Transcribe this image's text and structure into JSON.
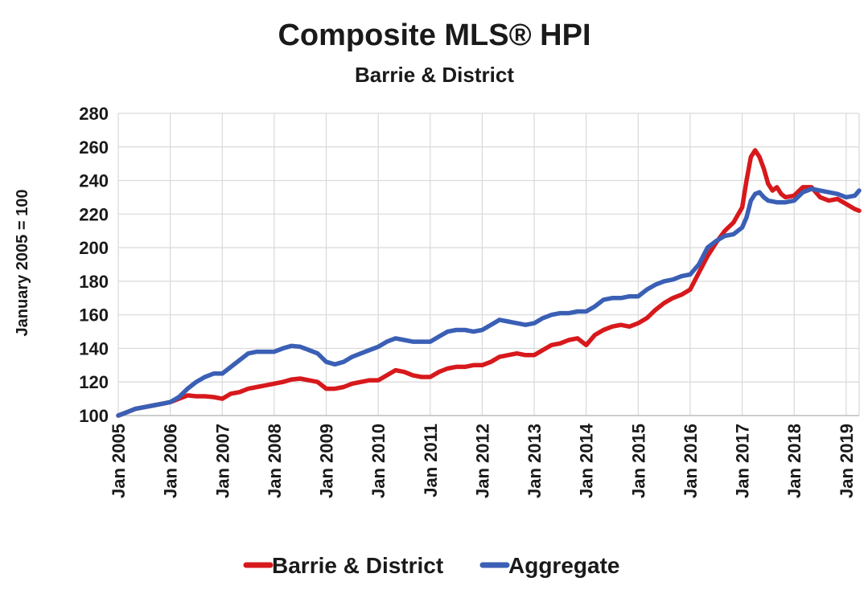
{
  "chart_data": {
    "type": "line",
    "title": "Composite MLS® HPI",
    "subtitle": "Barrie & District",
    "ylabel": "January 2005 = 100",
    "xlabel": "",
    "ylim": [
      100,
      280
    ],
    "yticks": [
      100,
      120,
      140,
      160,
      180,
      200,
      220,
      240,
      260,
      280
    ],
    "xlim": [
      "2005-01",
      "2019-04"
    ],
    "xticks": [
      "Jan 2005",
      "Jan 2006",
      "Jan 2007",
      "Jan 2008",
      "Jan 2009",
      "Jan 2010",
      "Jan 2011",
      "Jan 2012",
      "Jan 2013",
      "Jan 2014",
      "Jan 2015",
      "Jan 2016",
      "Jan 2017",
      "Jan 2018",
      "Jan 2019"
    ],
    "grid": true,
    "legend_position": "bottom",
    "series": [
      {
        "name": "Barrie & District",
        "color": "#d7191c",
        "points": [
          [
            "2005-01",
            100
          ],
          [
            "2005-03",
            102
          ],
          [
            "2005-05",
            104
          ],
          [
            "2005-07",
            105
          ],
          [
            "2005-09",
            106
          ],
          [
            "2005-11",
            107
          ],
          [
            "2006-01",
            108
          ],
          [
            "2006-03",
            110
          ],
          [
            "2006-05",
            112
          ],
          [
            "2006-07",
            111.5
          ],
          [
            "2006-09",
            111.5
          ],
          [
            "2006-11",
            111
          ],
          [
            "2007-01",
            110
          ],
          [
            "2007-03",
            113
          ],
          [
            "2007-05",
            114
          ],
          [
            "2007-07",
            116
          ],
          [
            "2007-09",
            117
          ],
          [
            "2007-11",
            118
          ],
          [
            "2008-01",
            119
          ],
          [
            "2008-03",
            120
          ],
          [
            "2008-05",
            121.5
          ],
          [
            "2008-07",
            122
          ],
          [
            "2008-09",
            121
          ],
          [
            "2008-11",
            120
          ],
          [
            "2009-01",
            116
          ],
          [
            "2009-03",
            116
          ],
          [
            "2009-05",
            117
          ],
          [
            "2009-07",
            119
          ],
          [
            "2009-09",
            120
          ],
          [
            "2009-11",
            121
          ],
          [
            "2010-01",
            121
          ],
          [
            "2010-03",
            124
          ],
          [
            "2010-05",
            127
          ],
          [
            "2010-07",
            126
          ],
          [
            "2010-09",
            124
          ],
          [
            "2010-11",
            123
          ],
          [
            "2011-01",
            123
          ],
          [
            "2011-03",
            126
          ],
          [
            "2011-05",
            128
          ],
          [
            "2011-07",
            129
          ],
          [
            "2011-09",
            129
          ],
          [
            "2011-11",
            130
          ],
          [
            "2012-01",
            130
          ],
          [
            "2012-03",
            132
          ],
          [
            "2012-05",
            135
          ],
          [
            "2012-07",
            136
          ],
          [
            "2012-09",
            137
          ],
          [
            "2012-11",
            136
          ],
          [
            "2013-01",
            136
          ],
          [
            "2013-03",
            139
          ],
          [
            "2013-05",
            142
          ],
          [
            "2013-07",
            143
          ],
          [
            "2013-09",
            145
          ],
          [
            "2013-11",
            146
          ],
          [
            "2014-01",
            142
          ],
          [
            "2014-03",
            148
          ],
          [
            "2014-05",
            151
          ],
          [
            "2014-07",
            153
          ],
          [
            "2014-09",
            154
          ],
          [
            "2014-11",
            153
          ],
          [
            "2015-01",
            155
          ],
          [
            "2015-03",
            158
          ],
          [
            "2015-05",
            163
          ],
          [
            "2015-07",
            167
          ],
          [
            "2015-09",
            170
          ],
          [
            "2015-11",
            172
          ],
          [
            "2016-01",
            175
          ],
          [
            "2016-03",
            185
          ],
          [
            "2016-05",
            195
          ],
          [
            "2016-07",
            203
          ],
          [
            "2016-09",
            210
          ],
          [
            "2016-11",
            215
          ],
          [
            "2017-01",
            224
          ],
          [
            "2017-02",
            240
          ],
          [
            "2017-03",
            254
          ],
          [
            "2017-04",
            258
          ],
          [
            "2017-05",
            254
          ],
          [
            "2017-06",
            247
          ],
          [
            "2017-07",
            238
          ],
          [
            "2017-08",
            234
          ],
          [
            "2017-09",
            236
          ],
          [
            "2017-10",
            232
          ],
          [
            "2017-11",
            230
          ],
          [
            "2018-01",
            231
          ],
          [
            "2018-03",
            236
          ],
          [
            "2018-05",
            236
          ],
          [
            "2018-07",
            230
          ],
          [
            "2018-09",
            228
          ],
          [
            "2018-11",
            229
          ],
          [
            "2019-01",
            226
          ],
          [
            "2019-03",
            223
          ],
          [
            "2019-04",
            222
          ]
        ]
      },
      {
        "name": "Aggregate",
        "color": "#3a5fb5",
        "points": [
          [
            "2005-01",
            100
          ],
          [
            "2005-03",
            102
          ],
          [
            "2005-05",
            104
          ],
          [
            "2005-07",
            105
          ],
          [
            "2005-09",
            106
          ],
          [
            "2005-11",
            107
          ],
          [
            "2006-01",
            108
          ],
          [
            "2006-03",
            111
          ],
          [
            "2006-05",
            116
          ],
          [
            "2006-07",
            120
          ],
          [
            "2006-09",
            123
          ],
          [
            "2006-11",
            125
          ],
          [
            "2007-01",
            125
          ],
          [
            "2007-03",
            129
          ],
          [
            "2007-05",
            133
          ],
          [
            "2007-07",
            137
          ],
          [
            "2007-09",
            138
          ],
          [
            "2007-11",
            138
          ],
          [
            "2008-01",
            138
          ],
          [
            "2008-03",
            140
          ],
          [
            "2008-05",
            141.5
          ],
          [
            "2008-07",
            141
          ],
          [
            "2008-09",
            139
          ],
          [
            "2008-11",
            137
          ],
          [
            "2009-01",
            132
          ],
          [
            "2009-03",
            130.5
          ],
          [
            "2009-05",
            132
          ],
          [
            "2009-07",
            135
          ],
          [
            "2009-09",
            137
          ],
          [
            "2009-11",
            139
          ],
          [
            "2010-01",
            141
          ],
          [
            "2010-03",
            144
          ],
          [
            "2010-05",
            146
          ],
          [
            "2010-07",
            145
          ],
          [
            "2010-09",
            144
          ],
          [
            "2010-11",
            144
          ],
          [
            "2011-01",
            144
          ],
          [
            "2011-03",
            147
          ],
          [
            "2011-05",
            150
          ],
          [
            "2011-07",
            151
          ],
          [
            "2011-09",
            151
          ],
          [
            "2011-11",
            150
          ],
          [
            "2012-01",
            151
          ],
          [
            "2012-03",
            154
          ],
          [
            "2012-05",
            157
          ],
          [
            "2012-07",
            156
          ],
          [
            "2012-09",
            155
          ],
          [
            "2012-11",
            154
          ],
          [
            "2013-01",
            155
          ],
          [
            "2013-03",
            158
          ],
          [
            "2013-05",
            160
          ],
          [
            "2013-07",
            161
          ],
          [
            "2013-09",
            161
          ],
          [
            "2013-11",
            162
          ],
          [
            "2014-01",
            162
          ],
          [
            "2014-03",
            165
          ],
          [
            "2014-05",
            169
          ],
          [
            "2014-07",
            170
          ],
          [
            "2014-09",
            170
          ],
          [
            "2014-11",
            171
          ],
          [
            "2015-01",
            171
          ],
          [
            "2015-03",
            175
          ],
          [
            "2015-05",
            178
          ],
          [
            "2015-07",
            180
          ],
          [
            "2015-09",
            181
          ],
          [
            "2015-11",
            183
          ],
          [
            "2016-01",
            184
          ],
          [
            "2016-03",
            190
          ],
          [
            "2016-05",
            200
          ],
          [
            "2016-07",
            204
          ],
          [
            "2016-09",
            207
          ],
          [
            "2016-11",
            208
          ],
          [
            "2017-01",
            212
          ],
          [
            "2017-02",
            218
          ],
          [
            "2017-03",
            228
          ],
          [
            "2017-04",
            232
          ],
          [
            "2017-05",
            233
          ],
          [
            "2017-06",
            230
          ],
          [
            "2017-07",
            228
          ],
          [
            "2017-09",
            227
          ],
          [
            "2017-11",
            227
          ],
          [
            "2018-01",
            228
          ],
          [
            "2018-03",
            233
          ],
          [
            "2018-05",
            235
          ],
          [
            "2018-07",
            234
          ],
          [
            "2018-09",
            233
          ],
          [
            "2018-11",
            232
          ],
          [
            "2019-01",
            230
          ],
          [
            "2019-03",
            231
          ],
          [
            "2019-04",
            234
          ]
        ]
      }
    ]
  }
}
